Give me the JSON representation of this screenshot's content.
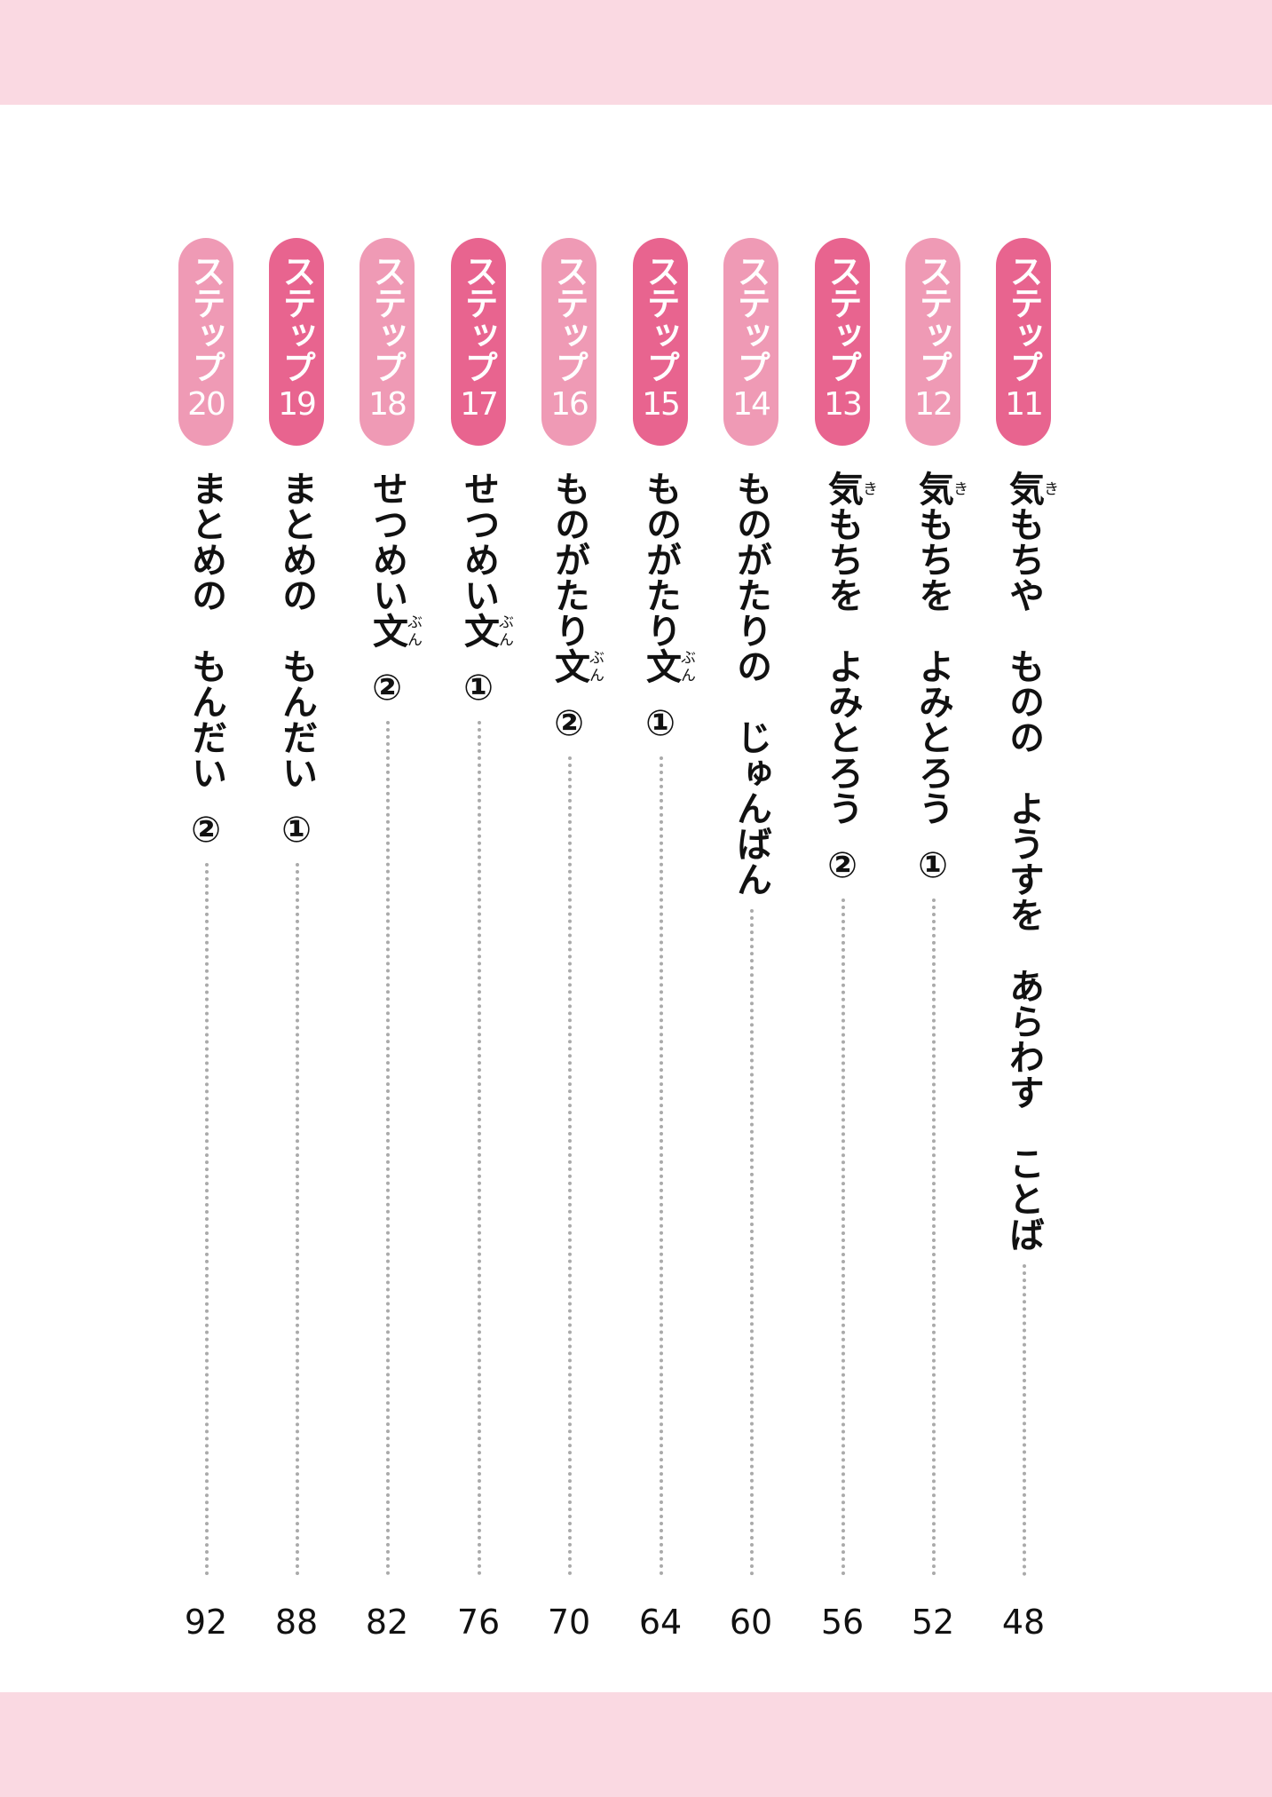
{
  "pill_prefix": "ステップ",
  "colors": {
    "band": "#fad9e2",
    "pill_dark": "#e8648f",
    "pill_light": "#ef9ab5",
    "dots": "#aaaaaa"
  },
  "entries": [
    {
      "step": "11",
      "shade": "dark",
      "title": [
        {
          "t": "気",
          "r": "き"
        },
        {
          "t": "もちや　ものの　ようすを　あらわす　ことば"
        }
      ],
      "marker": "",
      "page": "48"
    },
    {
      "step": "12",
      "shade": "light",
      "title": [
        {
          "t": "気",
          "r": "き"
        },
        {
          "t": "もちを　よみとろう"
        }
      ],
      "marker": "①",
      "page": "52"
    },
    {
      "step": "13",
      "shade": "dark",
      "title": [
        {
          "t": "気",
          "r": "き"
        },
        {
          "t": "もちを　よみとろう"
        }
      ],
      "marker": "②",
      "page": "56"
    },
    {
      "step": "14",
      "shade": "light",
      "title": [
        {
          "t": "ものがたりの　じゅんばん"
        }
      ],
      "marker": "",
      "page": "60"
    },
    {
      "step": "15",
      "shade": "dark",
      "title": [
        {
          "t": "ものがたり"
        },
        {
          "t": "文",
          "r": "ぶん"
        }
      ],
      "marker": "①",
      "page": "64"
    },
    {
      "step": "16",
      "shade": "light",
      "title": [
        {
          "t": "ものがたり"
        },
        {
          "t": "文",
          "r": "ぶん"
        }
      ],
      "marker": "②",
      "page": "70"
    },
    {
      "step": "17",
      "shade": "dark",
      "title": [
        {
          "t": "せつめい"
        },
        {
          "t": "文",
          "r": "ぶん"
        }
      ],
      "marker": "①",
      "page": "76"
    },
    {
      "step": "18",
      "shade": "light",
      "title": [
        {
          "t": "せつめい"
        },
        {
          "t": "文",
          "r": "ぶん"
        }
      ],
      "marker": "②",
      "page": "82"
    },
    {
      "step": "19",
      "shade": "dark",
      "title": [
        {
          "t": "まとめの　もんだい"
        }
      ],
      "marker": "①",
      "page": "88"
    },
    {
      "step": "20",
      "shade": "light",
      "title": [
        {
          "t": "まとめの　もんだい"
        }
      ],
      "marker": "②",
      "page": "92"
    }
  ]
}
